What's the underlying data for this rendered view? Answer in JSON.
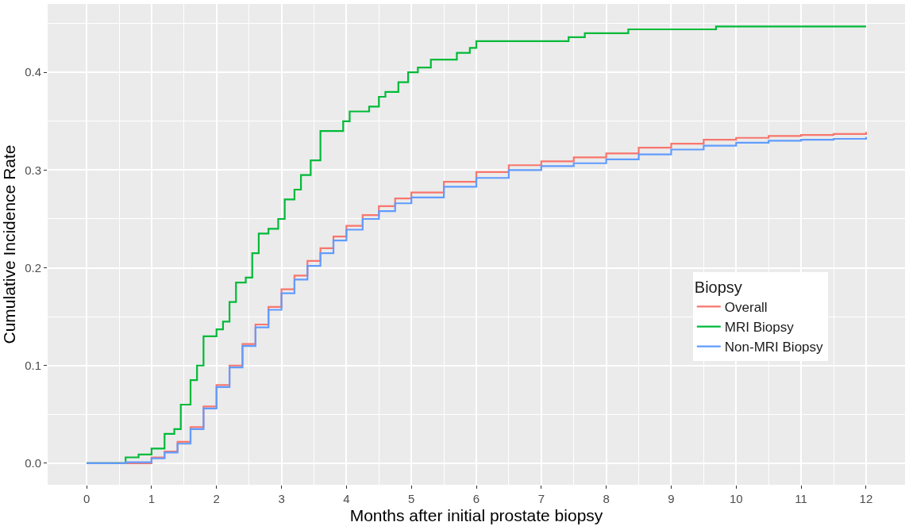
{
  "chart_data": {
    "type": "step",
    "xlabel": "Months after initial prostate biopsy",
    "ylabel": "Cumulative Incidence Rate",
    "legend_title": "Biopsy",
    "xlim": [
      -0.6,
      12.6
    ],
    "xticks": [
      0,
      1,
      2,
      3,
      4,
      5,
      6,
      7,
      8,
      9,
      10,
      11,
      12
    ],
    "ylim": [
      -0.022,
      0.47
    ],
    "yticks": [
      {
        "value": 0,
        "label": "0.0"
      },
      0.1,
      0.2,
      0.3,
      0.4
    ],
    "grid": true,
    "legend": "right",
    "series": [
      {
        "name": "Overall",
        "color": "#f8766d",
        "x": [
          0,
          1.0,
          1.2,
          1.4,
          1.6,
          1.8,
          2.0,
          2.2,
          2.4,
          2.6,
          2.8,
          3.0,
          3.2,
          3.4,
          3.6,
          3.8,
          4.0,
          4.25,
          4.5,
          4.75,
          5.0,
          5.5,
          6.0,
          6.5,
          7.0,
          7.5,
          8.0,
          8.5,
          9.0,
          9.5,
          10.0,
          10.5,
          11.0,
          11.5,
          12.0
        ],
        "values": [
          0,
          0.006,
          0.012,
          0.022,
          0.037,
          0.058,
          0.08,
          0.1,
          0.122,
          0.142,
          0.16,
          0.178,
          0.192,
          0.207,
          0.22,
          0.232,
          0.243,
          0.254,
          0.263,
          0.271,
          0.277,
          0.288,
          0.298,
          0.305,
          0.309,
          0.313,
          0.317,
          0.323,
          0.327,
          0.331,
          0.333,
          0.335,
          0.336,
          0.337,
          0.339
        ]
      },
      {
        "name": "MRI Biopsy",
        "color": "#00ba38",
        "x": [
          0,
          0.6,
          0.8,
          1.0,
          1.2,
          1.35,
          1.45,
          1.6,
          1.7,
          1.8,
          2.0,
          2.1,
          2.2,
          2.3,
          2.45,
          2.55,
          2.65,
          2.8,
          2.95,
          3.05,
          3.2,
          3.3,
          3.45,
          3.6,
          3.95,
          4.05,
          4.35,
          4.5,
          4.6,
          4.8,
          4.95,
          5.1,
          5.3,
          5.7,
          5.9,
          6.0,
          7.42,
          7.67,
          8.34,
          9.69,
          12.0
        ],
        "values": [
          0,
          0.006,
          0.009,
          0.015,
          0.03,
          0.035,
          0.06,
          0.085,
          0.1,
          0.13,
          0.137,
          0.145,
          0.165,
          0.185,
          0.19,
          0.215,
          0.235,
          0.24,
          0.25,
          0.27,
          0.28,
          0.295,
          0.31,
          0.34,
          0.35,
          0.36,
          0.365,
          0.375,
          0.38,
          0.39,
          0.4,
          0.405,
          0.413,
          0.42,
          0.425,
          0.432,
          0.436,
          0.44,
          0.444,
          0.447,
          0.447
        ]
      },
      {
        "name": "Non-MRI Biopsy",
        "color": "#619cff",
        "x": [
          0,
          0.6,
          1.0,
          1.2,
          1.4,
          1.6,
          1.8,
          2.0,
          2.2,
          2.4,
          2.6,
          2.8,
          3.0,
          3.2,
          3.4,
          3.6,
          3.8,
          4.0,
          4.25,
          4.5,
          4.75,
          5.0,
          5.5,
          6.0,
          6.5,
          7.0,
          7.5,
          8.0,
          8.5,
          9.0,
          9.5,
          10.0,
          10.5,
          11.0,
          11.5,
          12.0
        ],
        "values": [
          0,
          0.001,
          0.005,
          0.011,
          0.02,
          0.035,
          0.056,
          0.078,
          0.098,
          0.12,
          0.139,
          0.157,
          0.174,
          0.188,
          0.202,
          0.215,
          0.228,
          0.239,
          0.25,
          0.258,
          0.266,
          0.272,
          0.283,
          0.292,
          0.3,
          0.304,
          0.307,
          0.311,
          0.316,
          0.321,
          0.325,
          0.328,
          0.33,
          0.331,
          0.332,
          0.334
        ]
      }
    ]
  }
}
